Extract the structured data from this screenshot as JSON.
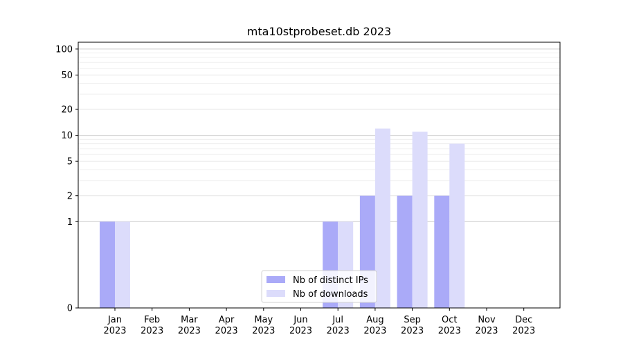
{
  "chart_data": {
    "type": "bar",
    "title": "mta10stprobeset.db 2023",
    "xlabel": "",
    "ylabel": "",
    "y_scale": "symlog",
    "ylim": [
      0,
      120
    ],
    "y_ticks": [
      0,
      1,
      2,
      5,
      10,
      20,
      50,
      100
    ],
    "grid": "horizontal",
    "legend_position": "lower-center",
    "categories": [
      [
        "Jan",
        "2023"
      ],
      [
        "Feb",
        "2023"
      ],
      [
        "Mar",
        "2023"
      ],
      [
        "Apr",
        "2023"
      ],
      [
        "May",
        "2023"
      ],
      [
        "Jun",
        "2023"
      ],
      [
        "Jul",
        "2023"
      ],
      [
        "Aug",
        "2023"
      ],
      [
        "Sep",
        "2023"
      ],
      [
        "Oct",
        "2023"
      ],
      [
        "Nov",
        "2023"
      ],
      [
        "Dec",
        "2023"
      ]
    ],
    "series": [
      {
        "name": "Nb of distinct IPs",
        "color": "#aaaaf8",
        "values": [
          1,
          0,
          0,
          0,
          0,
          0,
          1,
          2,
          2,
          2,
          0,
          0
        ]
      },
      {
        "name": "Nb of downloads",
        "color": "#dcdcfb",
        "values": [
          1,
          0,
          0,
          0,
          0,
          0,
          1,
          12,
          11,
          8,
          0,
          0
        ]
      }
    ]
  }
}
